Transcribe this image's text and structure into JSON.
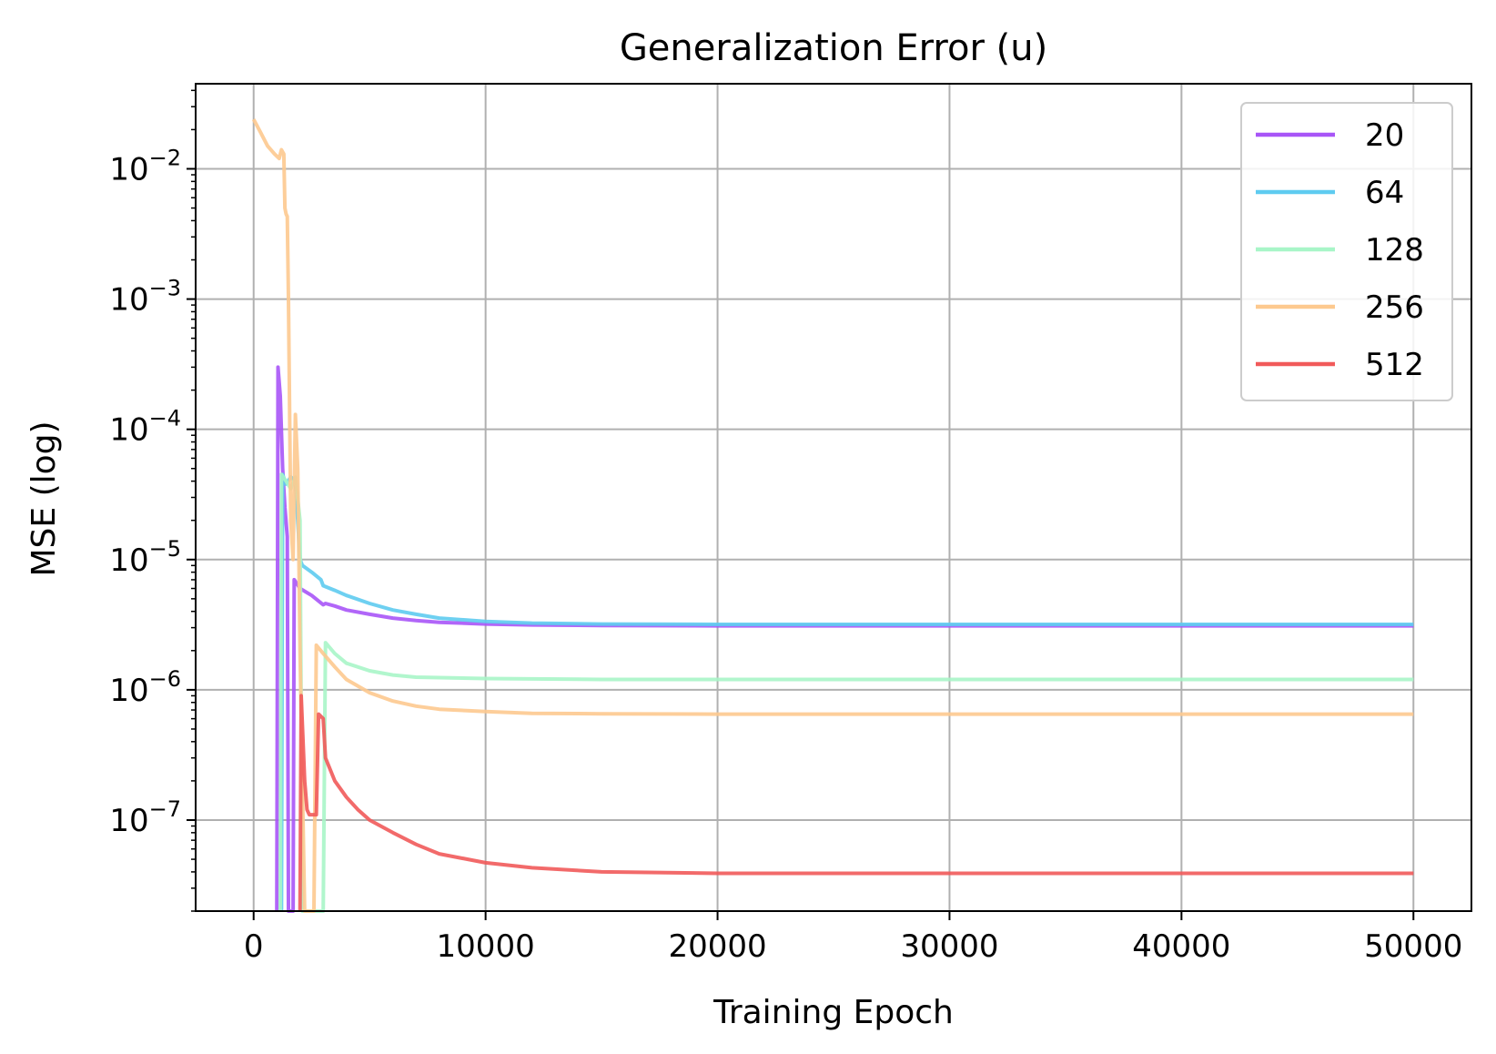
{
  "chart_data": {
    "type": "line",
    "title": "Generalization Error (u)",
    "xlabel": "Training Epoch",
    "ylabel": "MSE (log)",
    "xlim": [
      -2500,
      52500
    ],
    "ylim": [
      2e-08,
      0.045
    ],
    "yscale": "log",
    "grid": true,
    "legend_position": "top-right",
    "x_ticks": [
      0,
      10000,
      20000,
      30000,
      40000,
      50000
    ],
    "x_tick_labels": [
      "0",
      "10000",
      "20000",
      "30000",
      "40000",
      "50000"
    ],
    "y_ticks": [
      {
        "value": 0.01,
        "base": "10",
        "exp": "−2"
      },
      {
        "value": 0.001,
        "base": "10",
        "exp": "−3"
      },
      {
        "value": 0.0001,
        "base": "10",
        "exp": "−4"
      },
      {
        "value": 1e-05,
        "base": "10",
        "exp": "−5"
      },
      {
        "value": 1e-06,
        "base": "10",
        "exp": "−6"
      },
      {
        "value": 1e-07,
        "base": "10",
        "exp": "−7"
      }
    ],
    "series": [
      {
        "name": "20",
        "color": "#a855f7",
        "points": [
          [
            1000,
            2e-08
          ],
          [
            1050,
            0.0003
          ],
          [
            1150,
            0.00018
          ],
          [
            1250,
            5e-05
          ],
          [
            1350,
            2.5e-05
          ],
          [
            1450,
            1.5e-05
          ],
          [
            1500,
            2e-08
          ],
          [
            1700,
            2e-08
          ],
          [
            1750,
            7e-06
          ],
          [
            2000,
            6e-06
          ],
          [
            2500,
            5.3e-06
          ],
          [
            3000,
            4.5e-06
          ],
          [
            3100,
            4.6e-06
          ],
          [
            3500,
            4.4e-06
          ],
          [
            4000,
            4.1e-06
          ],
          [
            5000,
            3.8e-06
          ],
          [
            6000,
            3.55e-06
          ],
          [
            7000,
            3.4e-06
          ],
          [
            8000,
            3.3e-06
          ],
          [
            10000,
            3.2e-06
          ],
          [
            12000,
            3.15e-06
          ],
          [
            15000,
            3.12e-06
          ],
          [
            20000,
            3.1e-06
          ],
          [
            30000,
            3.1e-06
          ],
          [
            40000,
            3.1e-06
          ],
          [
            50000,
            3.1e-06
          ]
        ]
      },
      {
        "name": "64",
        "color": "#5ecbf0",
        "points": [
          [
            1200,
            2e-08
          ],
          [
            1250,
            4.5e-05
          ],
          [
            1400,
            3.8e-05
          ],
          [
            1600,
            4.3e-05
          ],
          [
            1800,
            4e-05
          ],
          [
            2000,
            1e-05
          ],
          [
            2100,
            9e-06
          ],
          [
            2500,
            8e-06
          ],
          [
            2900,
            7e-06
          ],
          [
            3000,
            6.3e-06
          ],
          [
            3500,
            5.8e-06
          ],
          [
            4000,
            5.3e-06
          ],
          [
            5000,
            4.6e-06
          ],
          [
            6000,
            4.1e-06
          ],
          [
            7000,
            3.8e-06
          ],
          [
            8000,
            3.55e-06
          ],
          [
            10000,
            3.35e-06
          ],
          [
            12000,
            3.25e-06
          ],
          [
            15000,
            3.2e-06
          ],
          [
            20000,
            3.18e-06
          ],
          [
            30000,
            3.18e-06
          ],
          [
            40000,
            3.18e-06
          ],
          [
            50000,
            3.18e-06
          ]
        ]
      },
      {
        "name": "128",
        "color": "#a8f5c8",
        "points": [
          [
            1150,
            2e-08
          ],
          [
            1200,
            4.5e-05
          ],
          [
            1400,
            4e-05
          ],
          [
            1600,
            3.5e-05
          ],
          [
            1800,
            4.3e-05
          ],
          [
            2000,
            2e-05
          ],
          [
            2100,
            2e-08
          ],
          [
            3000,
            2e-08
          ],
          [
            3100,
            2.3e-06
          ],
          [
            3500,
            1.9e-06
          ],
          [
            4000,
            1.6e-06
          ],
          [
            5000,
            1.4e-06
          ],
          [
            6000,
            1.3e-06
          ],
          [
            7000,
            1.25e-06
          ],
          [
            10000,
            1.22e-06
          ],
          [
            15000,
            1.2e-06
          ],
          [
            20000,
            1.2e-06
          ],
          [
            30000,
            1.2e-06
          ],
          [
            40000,
            1.2e-06
          ],
          [
            50000,
            1.2e-06
          ]
        ]
      },
      {
        "name": "256",
        "color": "#fdc98f",
        "points": [
          [
            0,
            0.024
          ],
          [
            300,
            0.019
          ],
          [
            600,
            0.015
          ],
          [
            900,
            0.013
          ],
          [
            1100,
            0.012
          ],
          [
            1200,
            0.014
          ],
          [
            1300,
            0.013
          ],
          [
            1350,
            0.005
          ],
          [
            1400,
            0.0045
          ],
          [
            1450,
            0.0043
          ],
          [
            1500,
            0.001
          ],
          [
            1600,
            2e-05
          ],
          [
            1700,
            1e-05
          ],
          [
            1800,
            0.00013
          ],
          [
            1900,
            5e-05
          ],
          [
            2000,
            2e-06
          ],
          [
            2200,
            2e-08
          ],
          [
            2600,
            2e-08
          ],
          [
            2700,
            2.2e-06
          ],
          [
            3000,
            1.9e-06
          ],
          [
            3500,
            1.5e-06
          ],
          [
            4000,
            1.2e-06
          ],
          [
            5000,
            9.5e-07
          ],
          [
            6000,
            8.2e-07
          ],
          [
            7000,
            7.5e-07
          ],
          [
            8000,
            7.1e-07
          ],
          [
            10000,
            6.8e-07
          ],
          [
            12000,
            6.6e-07
          ],
          [
            15000,
            6.55e-07
          ],
          [
            20000,
            6.5e-07
          ],
          [
            30000,
            6.5e-07
          ],
          [
            40000,
            6.5e-07
          ],
          [
            50000,
            6.5e-07
          ]
        ]
      },
      {
        "name": "512",
        "color": "#f15a5a",
        "points": [
          [
            2000,
            2e-08
          ],
          [
            2050,
            9e-07
          ],
          [
            2200,
            2e-07
          ],
          [
            2300,
            1.2e-07
          ],
          [
            2400,
            1.1e-07
          ],
          [
            2600,
            1.1e-07
          ],
          [
            2700,
            1.1e-07
          ],
          [
            2800,
            6.5e-07
          ],
          [
            3000,
            6e-07
          ],
          [
            3100,
            3e-07
          ],
          [
            3500,
            2e-07
          ],
          [
            4000,
            1.5e-07
          ],
          [
            4500,
            1.2e-07
          ],
          [
            5000,
            1e-07
          ],
          [
            6000,
            8e-08
          ],
          [
            7000,
            6.5e-08
          ],
          [
            8000,
            5.5e-08
          ],
          [
            10000,
            4.7e-08
          ],
          [
            12000,
            4.3e-08
          ],
          [
            15000,
            4e-08
          ],
          [
            20000,
            3.9e-08
          ],
          [
            30000,
            3.9e-08
          ],
          [
            40000,
            3.9e-08
          ],
          [
            50000,
            3.9e-08
          ]
        ]
      }
    ]
  }
}
